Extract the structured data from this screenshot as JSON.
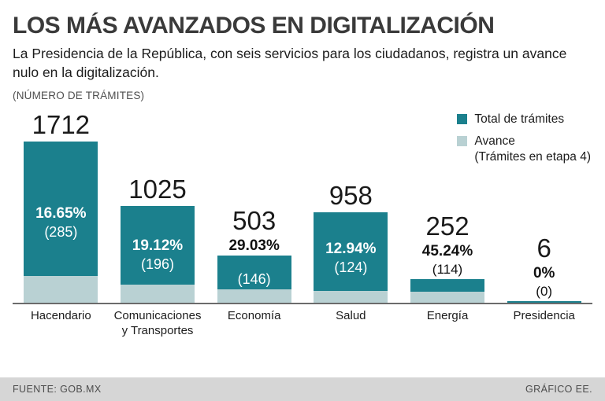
{
  "header": {
    "title": "LOS MÁS AVANZADOS EN DIGITALIZACIÓN",
    "subtitle": "La Presidencia de la República, con seis servicios para los ciudadanos, registra un avance nulo en la digitalización.",
    "axis_note": "(NÚMERO DE TRÁMITES)"
  },
  "legend": {
    "total_label": "Total de trámites",
    "avance_label": "Avance",
    "avance_sublabel": "(Trámites en etapa 4)",
    "total_color": "#1b808d",
    "avance_color": "#b9d1d3"
  },
  "footer": {
    "source": "FUENTE: GOB.MX",
    "credit": "GRÁFICO EE."
  },
  "chart_data": {
    "type": "bar",
    "title": "LOS MÁS AVANZADOS EN DIGITALIZACIÓN",
    "ylabel": "Número de trámites",
    "ylim": [
      0,
      1712
    ],
    "legend_position": "top-right",
    "grid": false,
    "categories": [
      "Hacendario",
      "Comunicaciones y Transportes",
      "Economía",
      "Salud",
      "Energía",
      "Presidencia"
    ],
    "series": [
      {
        "name": "Total de trámites",
        "values": [
          1712,
          1025,
          503,
          958,
          252,
          6
        ]
      },
      {
        "name": "Avance (Trámites en etapa 4)",
        "values": [
          285,
          196,
          146,
          124,
          114,
          0
        ]
      }
    ],
    "bars": [
      {
        "category": "Hacendario",
        "total": 1712,
        "avance": 285,
        "percent": "16.65%",
        "count": "(285)"
      },
      {
        "category": "Comunicaciones y Transportes",
        "total": 1025,
        "avance": 196,
        "percent": "19.12%",
        "count": "(196)"
      },
      {
        "category": "Economía",
        "total": 503,
        "avance": 146,
        "percent": "29.03%",
        "count": "(146)"
      },
      {
        "category": "Salud",
        "total": 958,
        "avance": 124,
        "percent": "12.94%",
        "count": "(124)"
      },
      {
        "category": "Energía",
        "total": 252,
        "avance": 114,
        "percent": "45.24%",
        "count": "(114)"
      },
      {
        "category": "Presidencia",
        "total": 6,
        "avance": 0,
        "percent": "0%",
        "count": "(0)"
      }
    ]
  }
}
